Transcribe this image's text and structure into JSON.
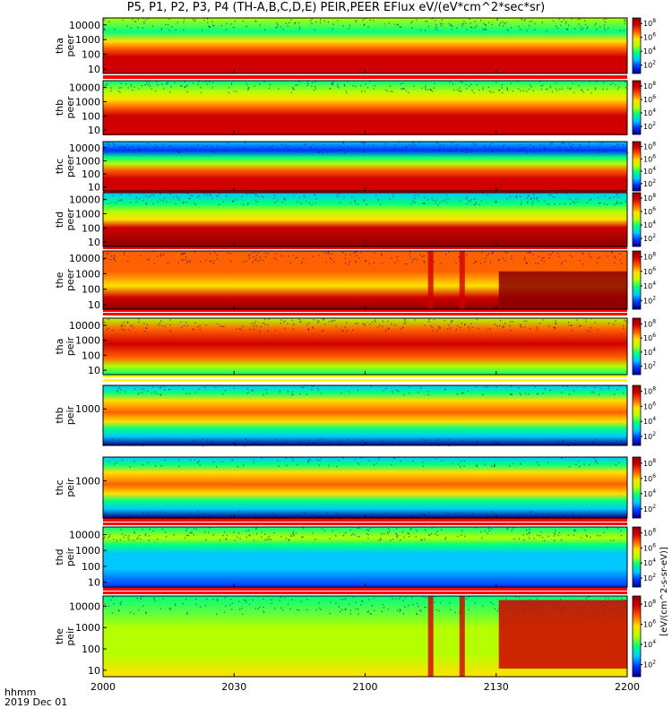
{
  "title": "P5, P1, P2, P3, P4 (TH-A,B,C,D,E) PEIR,PEER EFlux eV/(eV*cm^2*sec*sr)",
  "colorbar_label": "[eV/(cm^2-s-sr-eV)]",
  "time_axis": {
    "unit_label": "hhmm",
    "date_label": "2019 Dec 01"
  },
  "colors": {
    "colormap": [
      "#000080",
      "#0030ff",
      "#00c8ff",
      "#00ff80",
      "#b4ff00",
      "#ffe000",
      "#ff6000",
      "#d00000",
      "#8b0000"
    ],
    "flag_bar": [
      "#ff0000",
      "#ffff00"
    ]
  },
  "chart_data": {
    "type": "heatmap",
    "x_ticks": [
      "2000",
      "2030",
      "2100",
      "2130",
      "2200"
    ],
    "x_range": [
      "2000",
      "2200"
    ],
    "colorbar_ticks": [
      "10^2",
      "10^4",
      "10^6",
      "10^8"
    ],
    "panels": [
      {
        "id": "tha_peer",
        "label_line1": "tha",
        "label_line2": "peer",
        "y_ticks": [
          "10",
          "100",
          "1000",
          "10000"
        ],
        "ylim": [
          5,
          30000
        ],
        "log_y": true
      },
      {
        "id": "thb_peer",
        "label_line1": "thb",
        "label_line2": "peer",
        "y_ticks": [
          "10",
          "100",
          "1000",
          "10000"
        ],
        "ylim": [
          5,
          30000
        ],
        "log_y": true
      },
      {
        "id": "thc_peer",
        "label_line1": "thc",
        "label_line2": "peer",
        "y_ticks": [
          "10",
          "100",
          "1000",
          "10000"
        ],
        "ylim": [
          5,
          30000
        ],
        "log_y": true
      },
      {
        "id": "thd_peer",
        "label_line1": "thd",
        "label_line2": "peer",
        "y_ticks": [
          "10",
          "100",
          "1000",
          "10000"
        ],
        "ylim": [
          5,
          30000
        ],
        "log_y": true
      },
      {
        "id": "the_peer",
        "label_line1": "the",
        "label_line2": "peer",
        "y_ticks": [
          "10",
          "100",
          "1000",
          "10000"
        ],
        "ylim": [
          5,
          30000
        ],
        "log_y": true
      },
      {
        "id": "tha_peir",
        "label_line1": "tha",
        "label_line2": "peir",
        "y_ticks": [
          "10",
          "100",
          "1000",
          "10000"
        ],
        "ylim": [
          5,
          30000
        ],
        "log_y": true
      },
      {
        "id": "thb_peir",
        "label_line1": "thb",
        "label_line2": "peir",
        "y_ticks": [
          "1000"
        ],
        "ylim": [
          5,
          30000
        ],
        "log_y": true
      },
      {
        "id": "thc_peir",
        "label_line1": "thc",
        "label_line2": "peir",
        "y_ticks": [
          "1000"
        ],
        "ylim": [
          5,
          30000
        ],
        "log_y": true
      },
      {
        "id": "thd_peir",
        "label_line1": "thd",
        "label_line2": "peir",
        "y_ticks": [
          "10",
          "100",
          "1000",
          "10000"
        ],
        "ylim": [
          5,
          30000
        ],
        "log_y": true
      },
      {
        "id": "the_peir",
        "label_line1": "the",
        "label_line2": "peir",
        "y_ticks": [
          "10",
          "100",
          "1000",
          "10000"
        ],
        "ylim": [
          5,
          30000
        ],
        "log_y": true
      }
    ]
  }
}
